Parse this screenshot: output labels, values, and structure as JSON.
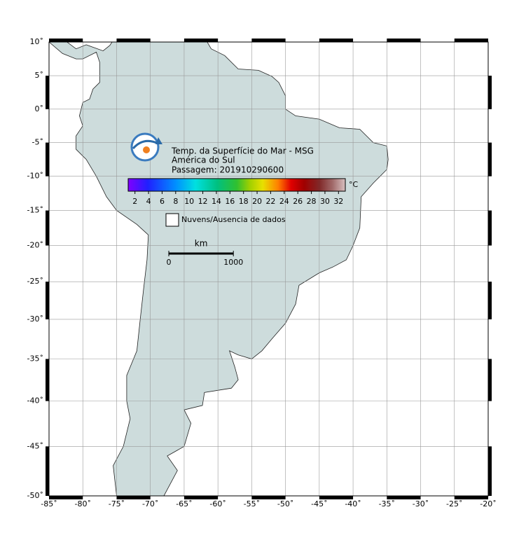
{
  "map": {
    "lonlim": [
      -85,
      -20
    ],
    "latlim": [
      10,
      -50
    ],
    "lonticks": [
      {
        "value": -85,
        "label": "-85˚"
      },
      {
        "value": -80,
        "label": "-80˚"
      },
      {
        "value": -75,
        "label": "-75˚"
      },
      {
        "value": -70,
        "label": "-70˚"
      },
      {
        "value": -65,
        "label": "-65˚"
      },
      {
        "value": -60,
        "label": "-60˚"
      },
      {
        "value": -55,
        "label": "-55˚"
      },
      {
        "value": -50,
        "label": "-50˚"
      },
      {
        "value": -45,
        "label": "-45˚"
      },
      {
        "value": -40,
        "label": "-40˚"
      },
      {
        "value": -35,
        "label": "-35˚"
      },
      {
        "value": -30,
        "label": "-30˚"
      },
      {
        "value": -25,
        "label": "-25˚"
      },
      {
        "value": -20,
        "label": "-20˚"
      }
    ],
    "latticks": [
      {
        "value": 10,
        "label": "10˚"
      },
      {
        "value": 5,
        "label": "5˚"
      },
      {
        "value": 0,
        "label": "0˚"
      },
      {
        "value": -5,
        "label": "-5˚"
      },
      {
        "value": -10,
        "label": "-10˚"
      },
      {
        "value": -15,
        "label": "-15˚"
      },
      {
        "value": -20,
        "label": "-20˚"
      },
      {
        "value": -25,
        "label": "-25˚"
      },
      {
        "value": -30,
        "label": "-30˚"
      },
      {
        "value": -35,
        "label": "-35˚"
      },
      {
        "value": -40,
        "label": "-40˚"
      },
      {
        "value": -45,
        "label": "-45˚"
      },
      {
        "value": -50,
        "label": "-50˚"
      }
    ],
    "grid": true
  },
  "title": {
    "line1": "Temp. da Superfície do Mar - MSG",
    "line2": "América do Sul",
    "line3": "Passagem: 201910290600"
  },
  "colorbar": {
    "unit": "°C",
    "clim": [
      1,
      33
    ],
    "ticks": [
      2,
      4,
      6,
      8,
      10,
      12,
      14,
      16,
      18,
      20,
      22,
      24,
      26,
      28,
      30,
      32
    ]
  },
  "legend": {
    "label": "Nuvens/Ausencia de dados"
  },
  "scale_bar": {
    "unit": "km",
    "ticks": [
      0,
      1000
    ]
  }
}
